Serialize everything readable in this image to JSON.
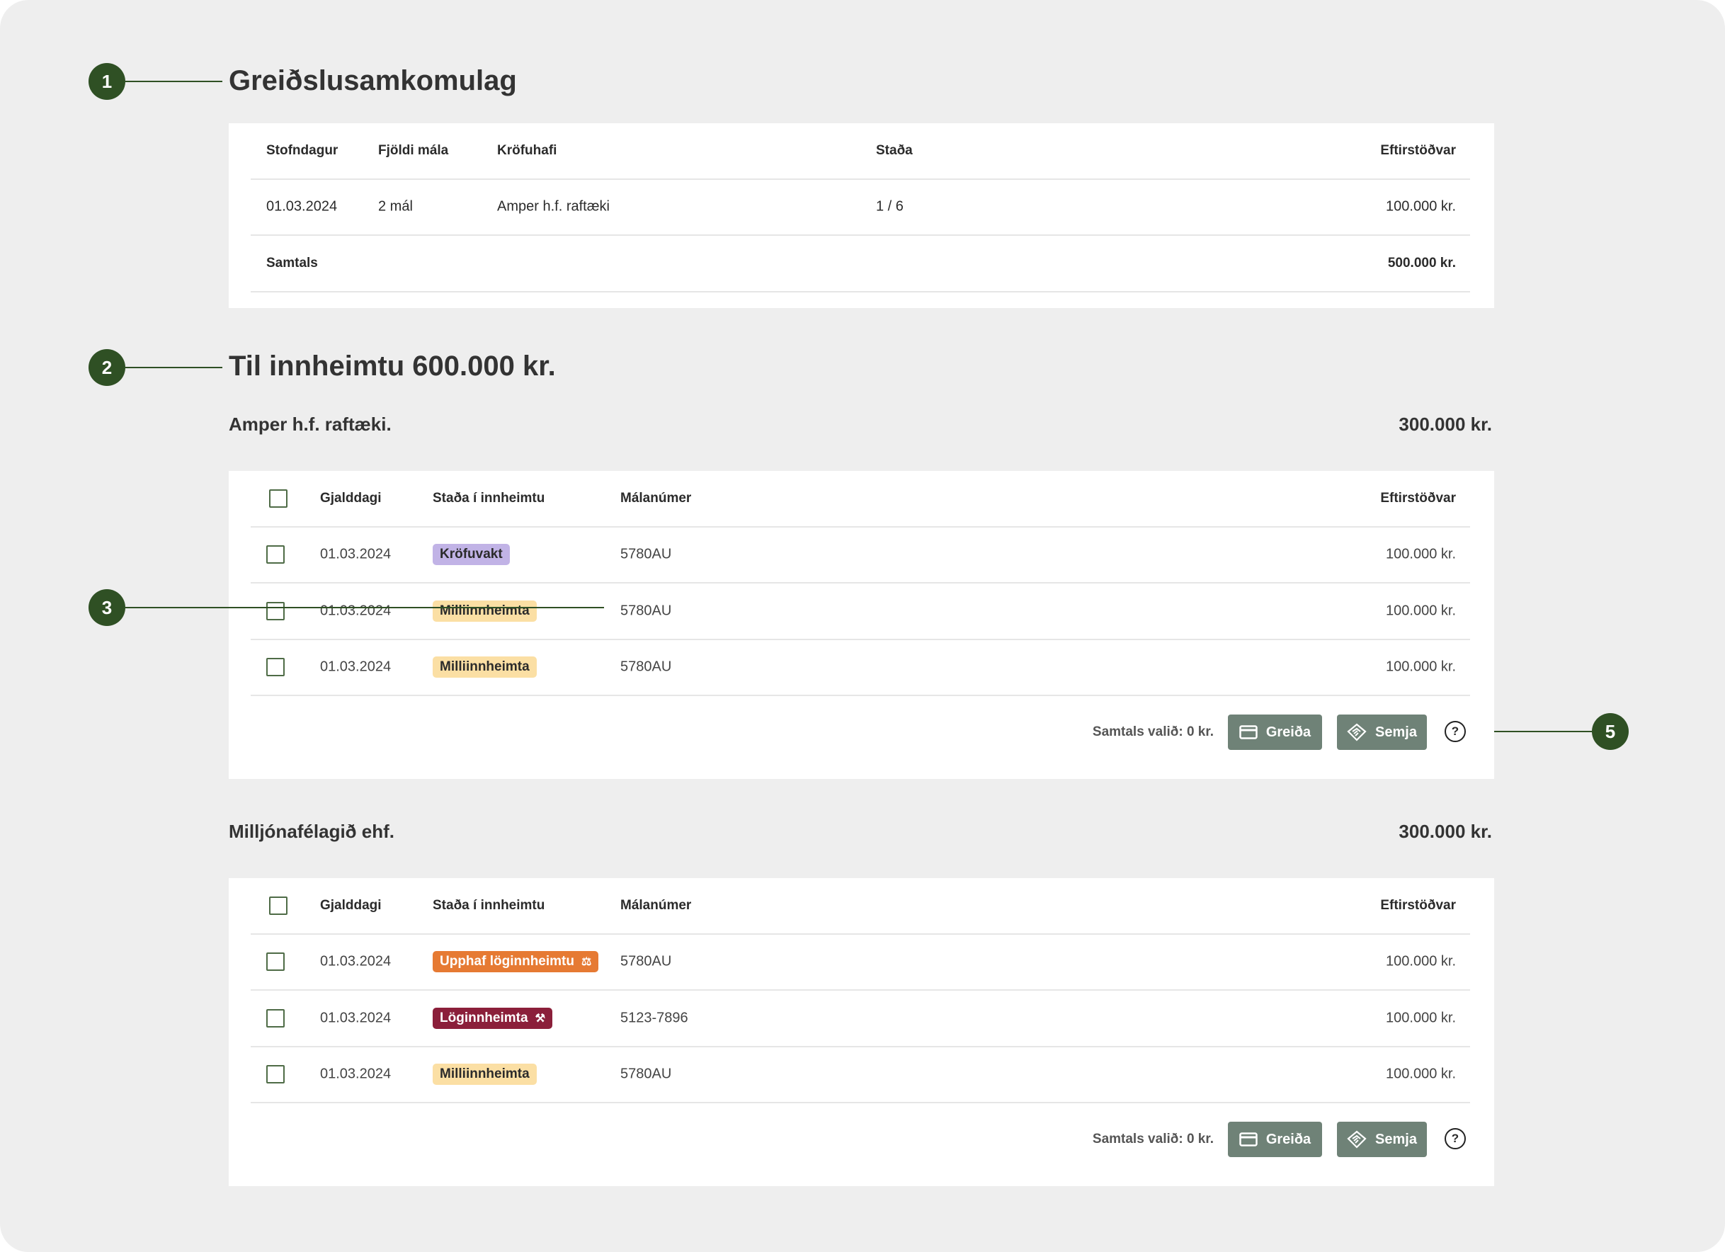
{
  "agreement": {
    "title": "Greiðslusamkomulag",
    "columns": [
      "Stofndagur",
      "Fjöldi mála",
      "Kröfuhafi",
      "Staða",
      "Eftirstöðvar"
    ],
    "row": [
      "01.03.2024",
      "2 mál",
      "Amper h.f. raftæki",
      "1 / 6",
      "100.000 kr."
    ],
    "total_label": "Samtals",
    "total_value": "500.000 kr."
  },
  "collection": {
    "title": "Til innheimtu 600.000 kr.",
    "columns": [
      "Gjalddagi",
      "Staða í innheimtu",
      "Málanúmer",
      "Eftirstöðvar"
    ],
    "groups": [
      {
        "name": "Amper h.f. raftæki.",
        "total": "300.000 kr.",
        "rows": [
          {
            "date": "01.03.2024",
            "status": "Kröfuvakt",
            "case": "5780AU",
            "amount": "100.000 kr."
          },
          {
            "date": "01.03.2024",
            "status": "Milliinnheimta",
            "case": "5780AU",
            "amount": "100.000 kr."
          },
          {
            "date": "01.03.2024",
            "status": "Milliinnheimta",
            "case": "5780AU",
            "amount": "100.000 kr."
          }
        ],
        "selected_total": "Samtals valið: 0 kr.",
        "pay_label": "Greiða",
        "negotiate_label": "Semja"
      },
      {
        "name": "Milljónafélagið ehf.",
        "total": "300.000 kr.",
        "rows": [
          {
            "date": "01.03.2024",
            "status": "Upphaf löginnheimtu",
            "case": "5780AU",
            "amount": "100.000 kr."
          },
          {
            "date": "01.03.2024",
            "status": "Löginnheimta",
            "case": "5123-7896",
            "amount": "100.000 kr."
          },
          {
            "date": "01.03.2024",
            "status": "Milliinnheimta",
            "case": "5780AU",
            "amount": "100.000 kr."
          }
        ],
        "selected_total": "Samtals valið: 0 kr.",
        "pay_label": "Greiða",
        "negotiate_label": "Semja"
      }
    ]
  },
  "annotations": [
    "1",
    "2",
    "3",
    "5"
  ],
  "colors": {
    "annotation": "#2f5024",
    "button": "#6f8277",
    "kröfuvakt": "#c1b3e6",
    "milliinnheimta": "#fbdfa4",
    "upphaf": "#e67a33",
    "löginnheimta": "#8b1f3a"
  }
}
